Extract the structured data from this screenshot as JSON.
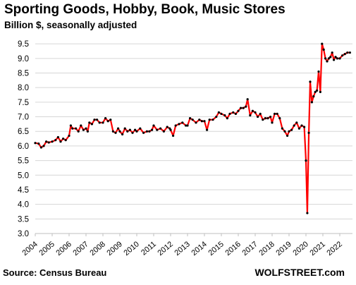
{
  "chart_data": {
    "type": "line",
    "title": "Sporting Goods, Hobby, Book, Music Stores",
    "subtitle": "Billion $, seasonally adjusted",
    "source": "Source: Census Bureau",
    "brand": "WOLFSTREET.com",
    "ylim": [
      3.0,
      9.6
    ],
    "yticks": [
      "3.0",
      "3.5",
      "4.0",
      "4.5",
      "5.0",
      "5.5",
      "6.0",
      "6.5",
      "7.0",
      "7.5",
      "8.0",
      "8.5",
      "9.0",
      "9.5"
    ],
    "xlim": [
      2004.0,
      2022.75
    ],
    "xticks": [
      "2004",
      "2005",
      "2006",
      "2007",
      "2008",
      "2009",
      "2010",
      "2011",
      "2012",
      "2013",
      "2014",
      "2015",
      "2016",
      "2017",
      "2018",
      "2019",
      "2020",
      "2021",
      "2022"
    ],
    "grid": true,
    "series": [
      {
        "color": "#ff0000",
        "marker_color": "#000000",
        "points": [
          [
            2004.0,
            6.1
          ],
          [
            2004.2,
            6.08
          ],
          [
            2004.35,
            5.95
          ],
          [
            2004.5,
            6.0
          ],
          [
            2004.65,
            6.15
          ],
          [
            2004.8,
            6.12
          ],
          [
            2005.0,
            6.15
          ],
          [
            2005.2,
            6.2
          ],
          [
            2005.35,
            6.3
          ],
          [
            2005.5,
            6.15
          ],
          [
            2005.65,
            6.25
          ],
          [
            2005.8,
            6.2
          ],
          [
            2006.0,
            6.35
          ],
          [
            2006.1,
            6.7
          ],
          [
            2006.2,
            6.6
          ],
          [
            2006.4,
            6.6
          ],
          [
            2006.55,
            6.5
          ],
          [
            2006.7,
            6.7
          ],
          [
            2006.85,
            6.55
          ],
          [
            2007.0,
            6.6
          ],
          [
            2007.1,
            6.5
          ],
          [
            2007.2,
            6.8
          ],
          [
            2007.35,
            6.75
          ],
          [
            2007.5,
            6.9
          ],
          [
            2007.65,
            6.9
          ],
          [
            2007.8,
            6.8
          ],
          [
            2008.0,
            6.8
          ],
          [
            2008.15,
            6.95
          ],
          [
            2008.3,
            6.85
          ],
          [
            2008.45,
            6.9
          ],
          [
            2008.6,
            6.5
          ],
          [
            2008.75,
            6.45
          ],
          [
            2008.9,
            6.6
          ],
          [
            2009.0,
            6.5
          ],
          [
            2009.15,
            6.4
          ],
          [
            2009.3,
            6.6
          ],
          [
            2009.45,
            6.5
          ],
          [
            2009.6,
            6.55
          ],
          [
            2009.75,
            6.45
          ],
          [
            2009.9,
            6.55
          ],
          [
            2010.0,
            6.5
          ],
          [
            2010.2,
            6.6
          ],
          [
            2010.4,
            6.45
          ],
          [
            2010.6,
            6.5
          ],
          [
            2010.75,
            6.5
          ],
          [
            2010.9,
            6.55
          ],
          [
            2011.0,
            6.7
          ],
          [
            2011.2,
            6.55
          ],
          [
            2011.4,
            6.6
          ],
          [
            2011.6,
            6.5
          ],
          [
            2011.8,
            6.65
          ],
          [
            2011.95,
            6.6
          ],
          [
            2012.0,
            6.55
          ],
          [
            2012.15,
            6.35
          ],
          [
            2012.3,
            6.7
          ],
          [
            2012.5,
            6.75
          ],
          [
            2012.7,
            6.8
          ],
          [
            2012.9,
            6.7
          ],
          [
            2013.0,
            6.7
          ],
          [
            2013.15,
            6.95
          ],
          [
            2013.3,
            6.9
          ],
          [
            2013.5,
            6.8
          ],
          [
            2013.7,
            6.9
          ],
          [
            2013.85,
            6.85
          ],
          [
            2014.0,
            6.85
          ],
          [
            2014.15,
            6.55
          ],
          [
            2014.3,
            6.9
          ],
          [
            2014.5,
            6.9
          ],
          [
            2014.7,
            7.0
          ],
          [
            2014.85,
            7.15
          ],
          [
            2015.0,
            7.1
          ],
          [
            2015.2,
            7.05
          ],
          [
            2015.35,
            6.95
          ],
          [
            2015.5,
            7.1
          ],
          [
            2015.7,
            7.15
          ],
          [
            2015.85,
            7.1
          ],
          [
            2016.0,
            7.2
          ],
          [
            2016.15,
            7.3
          ],
          [
            2016.3,
            7.3
          ],
          [
            2016.45,
            7.35
          ],
          [
            2016.55,
            7.6
          ],
          [
            2016.7,
            7.05
          ],
          [
            2016.85,
            7.2
          ],
          [
            2017.0,
            7.15
          ],
          [
            2017.15,
            7.0
          ],
          [
            2017.3,
            7.1
          ],
          [
            2017.45,
            6.9
          ],
          [
            2017.6,
            6.95
          ],
          [
            2017.75,
            6.95
          ],
          [
            2017.9,
            7.0
          ],
          [
            2018.0,
            6.8
          ],
          [
            2018.15,
            7.1
          ],
          [
            2018.3,
            7.1
          ],
          [
            2018.45,
            6.95
          ],
          [
            2018.6,
            6.6
          ],
          [
            2018.75,
            6.5
          ],
          [
            2018.9,
            6.35
          ],
          [
            2019.0,
            6.5
          ],
          [
            2019.15,
            6.55
          ],
          [
            2019.3,
            6.7
          ],
          [
            2019.45,
            6.8
          ],
          [
            2019.6,
            6.6
          ],
          [
            2019.75,
            6.7
          ],
          [
            2019.9,
            6.65
          ],
          [
            2020.0,
            5.5
          ],
          [
            2020.08,
            3.7
          ],
          [
            2020.17,
            6.45
          ],
          [
            2020.25,
            8.2
          ],
          [
            2020.35,
            7.5
          ],
          [
            2020.45,
            7.7
          ],
          [
            2020.55,
            7.85
          ],
          [
            2020.65,
            7.9
          ],
          [
            2020.75,
            8.55
          ],
          [
            2020.85,
            7.85
          ],
          [
            2020.95,
            9.5
          ],
          [
            2021.05,
            9.3
          ],
          [
            2021.15,
            9.0
          ],
          [
            2021.25,
            8.9
          ],
          [
            2021.35,
            9.0
          ],
          [
            2021.45,
            9.05
          ],
          [
            2021.55,
            9.2
          ],
          [
            2021.65,
            8.95
          ],
          [
            2021.75,
            9.05
          ],
          [
            2021.85,
            9.0
          ],
          [
            2022.0,
            9.0
          ],
          [
            2022.15,
            9.1
          ],
          [
            2022.3,
            9.15
          ],
          [
            2022.45,
            9.2
          ],
          [
            2022.6,
            9.2
          ]
        ]
      }
    ]
  }
}
